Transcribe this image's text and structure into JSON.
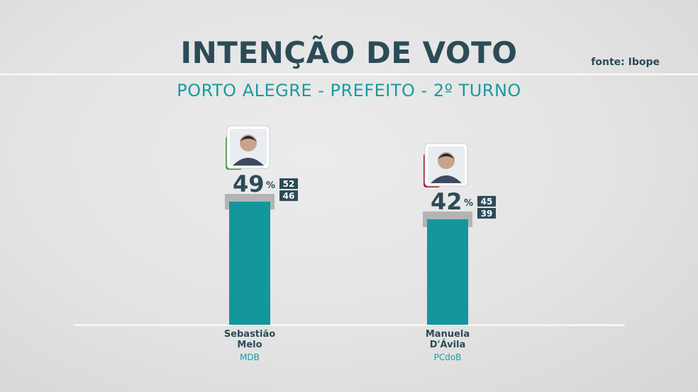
{
  "header": {
    "title": "INTENÇÃO DE VOTO",
    "subtitle": "PORTO ALEGRE - PREFEITO - 2º TURNO",
    "source": "fonte: Ibope"
  },
  "colors": {
    "bar": "#13979c",
    "margin_band": "#b4b4b4",
    "dark": "#2c4b57",
    "accent": "#1a9ba1",
    "party_mdb": "#3aa53a",
    "party_pcdob": "#a51d2a"
  },
  "chart_data": {
    "type": "bar",
    "ylim": [
      0,
      100
    ],
    "categories": [
      "Sebastião Melo",
      "Manuela D'Ávila"
    ],
    "candidates": [
      {
        "name_line1": "Sebastião",
        "name_line2": "Melo",
        "party": "MDB",
        "value": 49,
        "upper": 52,
        "lower": 46,
        "party_color": "#3aa53a"
      },
      {
        "name_line1": "Manuela",
        "name_line2": "D'Ávila",
        "party": "PCdoB",
        "value": 42,
        "upper": 45,
        "lower": 39,
        "party_color": "#a51d2a"
      }
    ],
    "unit": "%"
  }
}
